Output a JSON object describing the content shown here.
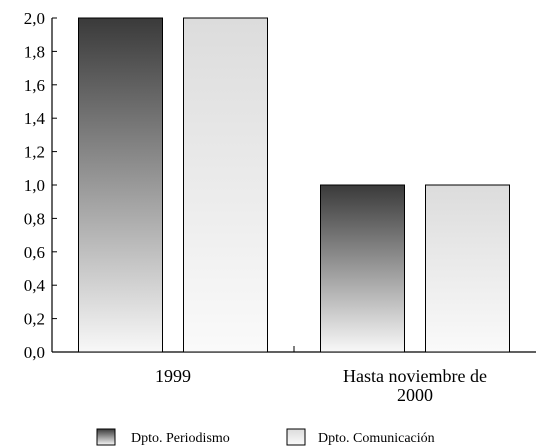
{
  "chart_data": {
    "type": "bar",
    "categories": [
      "1999",
      "Hasta noviembre de 2000"
    ],
    "category_label_lines": [
      [
        "1999"
      ],
      [
        "Hasta noviembre de",
        "2000"
      ]
    ],
    "series": [
      {
        "name": "Dpto. Periodismo",
        "values": [
          2.0,
          1.0
        ],
        "style": "dark-gradient"
      },
      {
        "name": "Dpto. Comunicación",
        "values": [
          2.0,
          1.0
        ],
        "style": "light-gradient"
      }
    ],
    "ylim": [
      0,
      2.0
    ],
    "yticks": [
      "0,0",
      "0,2",
      "0,4",
      "0,6",
      "0,8",
      "1,0",
      "1,2",
      "1,4",
      "1,6",
      "1,8",
      "2,0"
    ],
    "ytick_values": [
      0,
      0.2,
      0.4,
      0.6,
      0.8,
      1.0,
      1.2,
      1.4,
      1.6,
      1.8,
      2.0
    ],
    "xlabel": "",
    "ylabel": "",
    "title": "",
    "grid": false,
    "legend_position": "bottom"
  },
  "colors": {
    "dark_top": "#3a3a3a",
    "dark_bottom": "#f8f8f8",
    "light_top": "#dcdcdc",
    "light_bottom": "#fafafa",
    "stroke": "#000000"
  }
}
